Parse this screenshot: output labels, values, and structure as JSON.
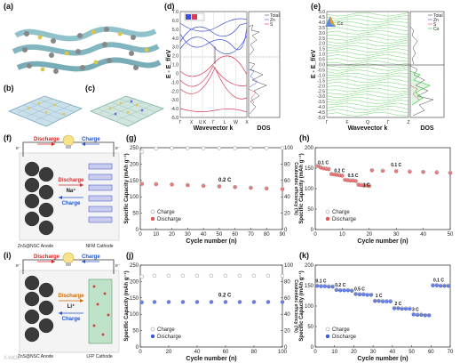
{
  "panel_labels": {
    "a": "(a)",
    "b": "(b)",
    "c": "(c)",
    "d": "(d)",
    "e": "(e)",
    "f": "(f)",
    "g": "(g)",
    "h": "(h)",
    "i": "(i)",
    "j": "(j)",
    "k": "(k)"
  },
  "colors": {
    "charge_gray": "#9a9a9a",
    "discharge_red": "#e05555",
    "discharge_blue": "#3b5bdc",
    "band_green": "#2fc42f",
    "band_blue": "#3c50d8",
    "band_red": "#d63c5a",
    "arrow_red": "#d22",
    "arrow_blue": "#2255cc",
    "mid_red": "#cc3333",
    "mid_orange": "#cc6600"
  },
  "band_d": {
    "ylabel": "E - E_f/eV",
    "xlabel": "Wavevector k",
    "dos_label": "DOS",
    "ticks_y": [
      "7.0",
      "6.0",
      "5.0",
      "4.0",
      "3.0",
      "2.0",
      "1.0",
      "0",
      "-1.0",
      "-2.0",
      "-3.0",
      "-4.0",
      "-5.0"
    ],
    "ticks_x": [
      "Γ",
      "X",
      "U K",
      "Γ",
      "L",
      "W",
      "X"
    ],
    "legend": [
      "Total",
      "Zn",
      "S"
    ],
    "bandgap_label": "Eg"
  },
  "band_e": {
    "ylabel": "E - E_f/eV",
    "xlabel": "Wavevector k",
    "dos_label": "DOS",
    "ticks_y": [
      "5.0",
      "4.5",
      "4.0",
      "3.5",
      "3.0",
      "2.5",
      "2.0",
      "1.5",
      "1.0",
      "0.5",
      "0.0",
      "-0.5",
      "-1.0",
      "-1.5",
      "-2.0",
      "-2.5",
      "-3.0",
      "-3.5",
      "-4.0",
      "-4.5",
      "-5.0"
    ],
    "ticks_x": [
      "Γ",
      "F",
      "Q",
      "Γ",
      "Z"
    ],
    "legend": [
      "Total",
      "Zn",
      "S",
      "Co"
    ],
    "corner_label": "Co"
  },
  "schematic_f": {
    "discharge": "Discharge",
    "charge": "Charge",
    "ion": "Na⁺",
    "anode": "ZnS@NSC Anode",
    "cathode": "NFM Cathode",
    "electron": "e⁻"
  },
  "schematic_i": {
    "discharge": "Discharge",
    "charge": "Charge",
    "ion": "Li⁺",
    "anode": "ZnS@NSC Anode",
    "cathode": "LFP Cathode",
    "electron": "e⁻"
  },
  "watermark": "X-MOL",
  "chart_data": [
    {
      "panel": "g",
      "type": "scatter",
      "xlabel": "Cycle number (n)",
      "ylabel": "Specific Capacity (mAh g⁻¹)",
      "y2label": "Coulombic efficiency (%)",
      "xlim": [
        0,
        90
      ],
      "ylim": [
        0,
        250
      ],
      "y2lim": [
        0,
        100
      ],
      "xticks": [
        0,
        10,
        20,
        30,
        40,
        50,
        60,
        70,
        80,
        90
      ],
      "yticks": [
        0,
        50,
        100,
        150,
        200,
        250
      ],
      "y2ticks": [
        0,
        20,
        40,
        60,
        80,
        100
      ],
      "annotation": "0.2 C",
      "legend": [
        "Charge",
        "Discharge"
      ],
      "series": [
        {
          "name": "Charge",
          "x": [
            1,
            10,
            20,
            30,
            40,
            50,
            60,
            70,
            80,
            90
          ],
          "y": [
            140,
            139,
            138,
            136,
            134,
            132,
            130,
            128,
            126,
            124
          ]
        },
        {
          "name": "Discharge",
          "x": [
            1,
            10,
            20,
            30,
            40,
            50,
            60,
            70,
            80,
            90
          ],
          "y": [
            139,
            138,
            137,
            135,
            133,
            131,
            129,
            127,
            125,
            123
          ]
        }
      ],
      "efficiency": {
        "x": [
          1,
          10,
          20,
          30,
          40,
          50,
          60,
          70,
          80,
          90
        ],
        "y": [
          95,
          99,
          99.5,
          99.5,
          99.5,
          99.5,
          99.5,
          99.6,
          99.6,
          99.6
        ]
      }
    },
    {
      "panel": "h",
      "type": "scatter",
      "xlabel": "Cycle number (n)",
      "ylabel": "Specific Capacity (mAh g⁻¹)",
      "xlim": [
        0,
        50
      ],
      "ylim": [
        0,
        200
      ],
      "xticks": [
        0,
        10,
        20,
        30,
        40,
        50
      ],
      "yticks": [
        0,
        50,
        100,
        150,
        200
      ],
      "legend": [
        "Charge",
        "Discharge"
      ],
      "rate_labels": [
        {
          "text": "0.1 C",
          "x": 3,
          "y": 160
        },
        {
          "text": "0.2 C",
          "x": 9,
          "y": 140
        },
        {
          "text": "0.5 C",
          "x": 14,
          "y": 128
        },
        {
          "text": "1 C",
          "x": 19,
          "y": 105
        },
        {
          "text": "0.1 C",
          "x": 30,
          "y": 154
        }
      ],
      "series": [
        {
          "name": "Charge",
          "x": [
            1,
            2,
            3,
            4,
            5,
            6,
            7,
            8,
            9,
            10,
            11,
            12,
            13,
            14,
            15,
            16,
            17,
            18,
            19,
            20,
            21,
            25,
            30,
            35,
            40,
            45,
            50
          ],
          "y": [
            157,
            152,
            150,
            149,
            148,
            136,
            135,
            134,
            133,
            132,
            122,
            121,
            120,
            120,
            119,
            110,
            109,
            108,
            108,
            107,
            145,
            144,
            143,
            142,
            141,
            140,
            139
          ]
        },
        {
          "name": "Discharge",
          "x": [
            1,
            2,
            3,
            4,
            5,
            6,
            7,
            8,
            9,
            10,
            11,
            12,
            13,
            14,
            15,
            16,
            17,
            18,
            19,
            20,
            21,
            25,
            30,
            35,
            40,
            45,
            50
          ],
          "y": [
            155,
            151,
            149,
            148,
            147,
            135,
            134,
            133,
            132,
            131,
            121,
            120,
            119,
            119,
            118,
            109,
            108,
            107,
            107,
            106,
            144,
            143,
            142,
            141,
            140,
            139,
            138
          ]
        }
      ]
    },
    {
      "panel": "j",
      "type": "scatter",
      "xlabel": "Cycle number (n)",
      "ylabel": "Specific Capacity (mAh g⁻¹)",
      "y2label": "Coulombic efficiency (%)",
      "xlim": [
        0,
        100
      ],
      "ylim": [
        0,
        250
      ],
      "y2lim": [
        0,
        100
      ],
      "xticks": [
        0,
        20,
        40,
        60,
        80,
        100
      ],
      "yticks": [
        0,
        50,
        100,
        150,
        200,
        250
      ],
      "y2ticks": [
        0,
        20,
        40,
        60,
        80,
        100
      ],
      "annotation": "0.2 C",
      "legend": [
        "Charge",
        "Discharge"
      ],
      "series": [
        {
          "name": "Charge",
          "x": [
            1,
            10,
            20,
            30,
            40,
            50,
            60,
            70,
            80,
            90,
            100
          ],
          "y": [
            137,
            138,
            138,
            138,
            138,
            138,
            138,
            138,
            138,
            138,
            138
          ]
        },
        {
          "name": "Discharge",
          "x": [
            1,
            10,
            20,
            30,
            40,
            50,
            60,
            70,
            80,
            90,
            100
          ],
          "y": [
            136,
            137,
            137,
            137,
            137,
            137,
            137,
            137,
            137,
            137,
            137
          ]
        }
      ],
      "efficiency": {
        "x": [
          1,
          10,
          20,
          30,
          40,
          50,
          60,
          70,
          80,
          90,
          100
        ],
        "y": [
          86,
          87,
          87,
          87,
          87,
          87,
          87,
          87,
          87,
          87,
          87
        ]
      }
    },
    {
      "panel": "k",
      "type": "scatter",
      "xlabel": "Cycle number (n)",
      "ylabel": "Specific Capacity (mAh g⁻¹)",
      "xlim": [
        0,
        70
      ],
      "ylim": [
        0,
        200
      ],
      "xticks": [
        0,
        10,
        20,
        30,
        40,
        50,
        60,
        70
      ],
      "yticks": [
        0,
        50,
        100,
        150,
        200
      ],
      "legend": [
        "Charge",
        "Discharge"
      ],
      "rate_labels": [
        {
          "text": "0.1 C",
          "x": 3,
          "y": 158
        },
        {
          "text": "0.2 C",
          "x": 13,
          "y": 148
        },
        {
          "text": "0.5 C",
          "x": 23,
          "y": 138
        },
        {
          "text": "1 C",
          "x": 33,
          "y": 122
        },
        {
          "text": "2 C",
          "x": 43,
          "y": 102
        },
        {
          "text": "3 C",
          "x": 52,
          "y": 88
        },
        {
          "text": "0.1 C",
          "x": 64,
          "y": 160
        }
      ],
      "series": [
        {
          "name": "Charge",
          "x": [
            1,
            3,
            5,
            7,
            9,
            11,
            13,
            15,
            17,
            19,
            21,
            23,
            25,
            27,
            29,
            31,
            33,
            35,
            37,
            39,
            41,
            43,
            45,
            47,
            49,
            51,
            53,
            55,
            57,
            59,
            61,
            63,
            65,
            67,
            69
          ],
          "y": [
            150,
            149,
            149,
            148,
            148,
            140,
            139,
            139,
            139,
            138,
            130,
            129,
            129,
            128,
            128,
            113,
            113,
            112,
            112,
            112,
            95,
            95,
            94,
            94,
            94,
            80,
            79,
            79,
            78,
            78,
            151,
            151,
            150,
            150,
            150
          ]
        },
        {
          "name": "Discharge",
          "x": [
            1,
            3,
            5,
            7,
            9,
            11,
            13,
            15,
            17,
            19,
            21,
            23,
            25,
            27,
            29,
            31,
            33,
            35,
            37,
            39,
            41,
            43,
            45,
            47,
            49,
            51,
            53,
            55,
            57,
            59,
            61,
            63,
            65,
            67,
            69
          ],
          "y": [
            149,
            148,
            148,
            147,
            147,
            139,
            138,
            138,
            138,
            137,
            129,
            128,
            128,
            127,
            127,
            112,
            112,
            111,
            111,
            111,
            94,
            94,
            93,
            93,
            93,
            79,
            78,
            78,
            77,
            77,
            150,
            150,
            149,
            149,
            149
          ]
        }
      ]
    }
  ]
}
